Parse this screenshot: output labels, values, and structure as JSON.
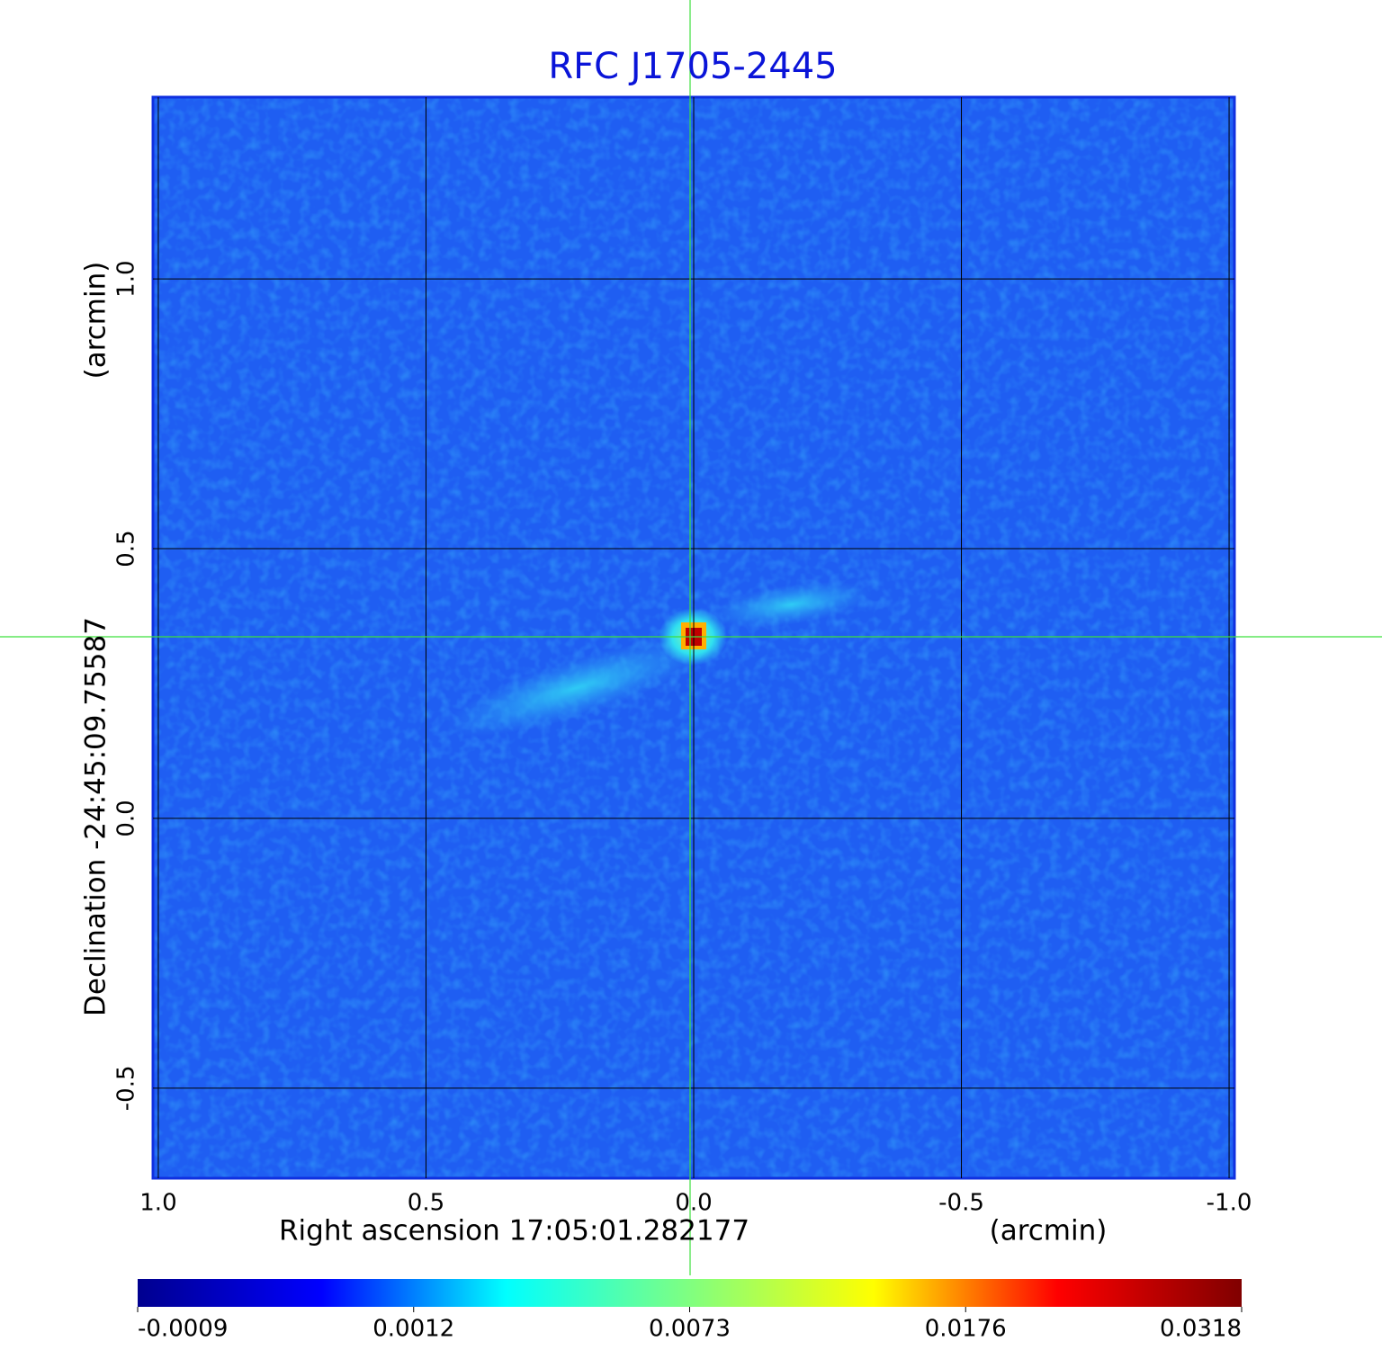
{
  "chart_data": {
    "type": "image",
    "title": "RFC J1705-2445",
    "xlabel": "Right ascension  17:05:01.282177",
    "xunit": "(arcmin)",
    "ylabel": "Declination  -24:45:09.75587",
    "yunit": "(arcmin)",
    "xlim": [
      1.01,
      -1.01
    ],
    "ylim": [
      -0.667,
      1.337
    ],
    "xticks": [
      {
        "value": 1,
        "label": "1.0"
      },
      {
        "value": 0.5,
        "label": "0.5"
      },
      {
        "value": 0,
        "label": "0.0"
      },
      {
        "value": -0.5,
        "label": "-0.5"
      },
      {
        "value": -1,
        "label": "-1.0"
      }
    ],
    "yticks": [
      {
        "value": -0.5,
        "label": "-0.5"
      },
      {
        "value": 0,
        "label": "0.0"
      },
      {
        "value": 0.5,
        "label": "0.5"
      },
      {
        "value": 1,
        "label": "1.0"
      }
    ],
    "grid": true,
    "colorbar": {
      "ticks": [
        -0.0009,
        0.0012,
        0.0073,
        0.0176,
        0.0318
      ],
      "colors": [
        "#00008f",
        "#0000ff",
        "#00ffff",
        "#80ff80",
        "#ffff00",
        "#ff0000",
        "#800000"
      ]
    }
  }
}
